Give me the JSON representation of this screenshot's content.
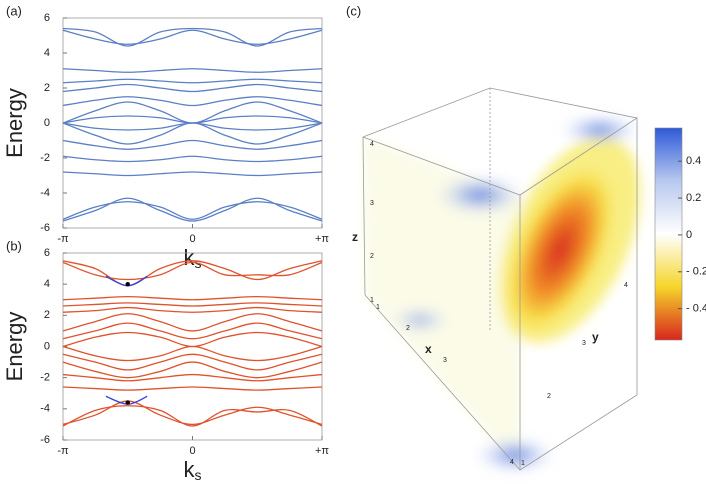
{
  "chart_data": [
    {
      "type": "line",
      "panel": "(a)",
      "ylabel": "Energy",
      "xlabel": {
        "main": "k",
        "sub": "s"
      },
      "xlim": [
        -3.1416,
        3.1416
      ],
      "ylim": [
        -6,
        6
      ],
      "xticks": [
        {
          "value": -3.1416,
          "label": "-π"
        },
        0,
        {
          "value": 3.1416,
          "label": "+π"
        }
      ],
      "yticks": [
        -6,
        -4,
        -2,
        0,
        2,
        4,
        6
      ],
      "color": "#5b7fc4",
      "x": [
        -3.1416,
        -2.3562,
        -1.5708,
        -0.7854,
        0,
        0.7854,
        1.5708,
        2.3562,
        3.1416
      ],
      "series": [
        {
          "values": [
            5.4,
            5.2,
            4.4,
            5.2,
            5.4,
            5.2,
            4.4,
            5.2,
            5.4
          ]
        },
        {
          "values": [
            5.3,
            4.8,
            4.5,
            4.8,
            5.3,
            4.8,
            4.5,
            4.8,
            5.3
          ]
        },
        {
          "values": [
            3.1,
            3.0,
            2.9,
            3.0,
            3.1,
            3.0,
            2.9,
            3.0,
            3.1
          ]
        },
        {
          "values": [
            2.3,
            2.4,
            2.5,
            2.4,
            2.3,
            2.4,
            2.5,
            2.4,
            2.3
          ]
        },
        {
          "values": [
            1.8,
            2.0,
            2.2,
            2.0,
            1.8,
            2.0,
            2.2,
            2.0,
            1.8
          ]
        },
        {
          "values": [
            1.0,
            1.3,
            1.5,
            1.3,
            1.0,
            1.3,
            1.5,
            1.3,
            1.0
          ]
        },
        {
          "values": [
            0,
            0.7,
            1.2,
            0.7,
            0,
            0.7,
            1.2,
            0.7,
            0
          ]
        },
        {
          "values": [
            0,
            0.3,
            0.4,
            0.3,
            0,
            0.3,
            0.4,
            0.3,
            0
          ]
        },
        {
          "values": [
            0,
            -0.3,
            -0.4,
            -0.3,
            0,
            -0.3,
            -0.4,
            -0.3,
            0
          ]
        },
        {
          "values": [
            0,
            -0.7,
            -1.2,
            -0.7,
            0,
            -0.7,
            -1.2,
            -0.7,
            0
          ]
        },
        {
          "values": [
            -1.0,
            -1.3,
            -1.5,
            -1.3,
            -1.0,
            -1.3,
            -1.5,
            -1.3,
            -1.0
          ]
        },
        {
          "values": [
            -1.9,
            -2.1,
            -2.2,
            -2.1,
            -1.9,
            -2.1,
            -2.2,
            -2.1,
            -1.9
          ]
        },
        {
          "values": [
            -2.8,
            -2.9,
            -3.0,
            -2.9,
            -2.8,
            -2.9,
            -3.0,
            -2.9,
            -2.8
          ]
        },
        {
          "values": [
            -5.5,
            -4.8,
            -4.5,
            -4.8,
            -5.5,
            -4.8,
            -4.5,
            -4.8,
            -5.5
          ]
        },
        {
          "values": [
            -5.6,
            -5.0,
            -4.3,
            -5.0,
            -5.6,
            -5.0,
            -4.3,
            -5.0,
            -5.6
          ]
        }
      ]
    },
    {
      "type": "line",
      "panel": "(b)",
      "ylabel": "Energy",
      "xlabel": {
        "main": "k",
        "sub": "s"
      },
      "xlim": [
        -3.1416,
        3.1416
      ],
      "ylim": [
        -6,
        6
      ],
      "xticks": [
        {
          "value": -3.1416,
          "label": "-π"
        },
        0,
        {
          "value": 3.1416,
          "label": "+π"
        }
      ],
      "yticks": [
        -6,
        -4,
        -2,
        0,
        2,
        4,
        6
      ],
      "color": "#e0522c",
      "x": [
        -3.1416,
        -2.3562,
        -1.5708,
        -0.7854,
        0,
        0.7854,
        1.5708,
        2.3562,
        3.1416
      ],
      "series": [
        {
          "values": [
            5.5,
            5.0,
            3.9,
            5.0,
            5.5,
            5.0,
            4.3,
            5.0,
            5.5
          ]
        },
        {
          "values": [
            5.4,
            4.6,
            4.3,
            4.6,
            5.4,
            4.6,
            4.6,
            4.6,
            5.4
          ]
        },
        {
          "values": [
            3.0,
            3.1,
            3.2,
            3.1,
            3.0,
            3.1,
            3.2,
            3.1,
            3.0
          ]
        },
        {
          "values": [
            2.6,
            2.7,
            2.8,
            2.7,
            2.6,
            2.7,
            2.8,
            2.7,
            2.6
          ]
        },
        {
          "values": [
            2.2,
            2.3,
            2.5,
            2.3,
            2.2,
            2.3,
            2.5,
            2.3,
            2.2
          ]
        },
        {
          "values": [
            1.0,
            1.6,
            2.1,
            1.6,
            1.0,
            1.6,
            2.1,
            1.6,
            1.0
          ]
        },
        {
          "values": [
            0.5,
            1.0,
            1.5,
            1.0,
            0.5,
            1.0,
            1.5,
            1.0,
            0.5
          ]
        },
        {
          "values": [
            0,
            0.6,
            0.9,
            0.6,
            0,
            0.6,
            0.9,
            0.6,
            0
          ]
        },
        {
          "values": [
            0,
            -0.6,
            -0.9,
            -0.6,
            0,
            -0.6,
            -0.9,
            -0.6,
            0
          ]
        },
        {
          "values": [
            -0.5,
            -1.0,
            -1.5,
            -1.0,
            -0.5,
            -1.0,
            -1.5,
            -1.0,
            -0.5
          ]
        },
        {
          "values": [
            -1.0,
            -1.6,
            -2.0,
            -1.6,
            -1.0,
            -1.6,
            -2.0,
            -1.6,
            -1.0
          ]
        },
        {
          "values": [
            -1.8,
            -2.0,
            -2.2,
            -2.0,
            -1.8,
            -2.0,
            -2.2,
            -2.0,
            -1.8
          ]
        },
        {
          "values": [
            -2.6,
            -2.7,
            -2.8,
            -2.7,
            -2.6,
            -2.7,
            -2.8,
            -2.7,
            -2.6
          ]
        },
        {
          "values": [
            -5.0,
            -4.4,
            -3.5,
            -4.4,
            -5.0,
            -4.4,
            -3.9,
            -4.4,
            -5.0
          ]
        },
        {
          "values": [
            -5.1,
            -4.1,
            -3.8,
            -4.1,
            -5.1,
            -4.1,
            -4.2,
            -4.1,
            -5.1
          ]
        },
        {
          "color": "#3040e0",
          "x": [
            -2.1,
            -1.5708,
            -1.1
          ],
          "values": [
            4.5,
            3.9,
            4.5
          ]
        },
        {
          "color": "#3040e0",
          "x": [
            -2.1,
            -1.5708,
            -1.1
          ],
          "values": [
            -3.2,
            -3.7,
            -3.2
          ]
        }
      ],
      "markers": {
        "color": "#000",
        "x": [
          -1.5708,
          -1.5708
        ],
        "values": [
          4.0,
          -3.6
        ]
      }
    },
    {
      "type": "density3d",
      "panel": "(c)",
      "xlabel": "x",
      "ylabel": "y",
      "zlabel": "z",
      "axis_ticks": {
        "x": [
          "1",
          "2",
          "3",
          "4"
        ],
        "y": [
          "1",
          "2",
          "3",
          "4"
        ],
        "z": [
          "1",
          "2",
          "3",
          "4"
        ]
      },
      "clim": [
        -0.57,
        0.58
      ],
      "cticks": [
        {
          "value": 0.4,
          "label": "0.4"
        },
        {
          "value": 0.2,
          "label": "0.2"
        },
        0,
        {
          "value": -0.2,
          "label": "- 0.2"
        },
        {
          "value": -0.4,
          "label": "- 0.4"
        }
      ]
    }
  ]
}
